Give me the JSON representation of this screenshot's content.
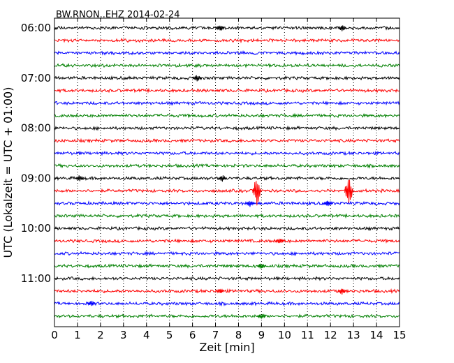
{
  "chart_data": {
    "type": "line",
    "title": "BW.RNON..EHZ 2014-02-24",
    "xlabel": "Zeit  [min]",
    "ylabel": "UTC (Lokalzeit = UTC + 01:00)",
    "xlim": [
      0,
      15
    ],
    "x_ticks": [
      "0",
      "1",
      "2",
      "3",
      "4",
      "5",
      "6",
      "7",
      "8",
      "9",
      "10",
      "11",
      "12",
      "13",
      "14",
      "15"
    ],
    "y_ticks": [
      "06:00",
      "07:00",
      "08:00",
      "09:00",
      "10:00",
      "11:00"
    ],
    "grid": "vertical dotted at each minute",
    "trace_interval_minutes": 15,
    "trace_colors": [
      "#000000",
      "#ff0000",
      "#0000ff",
      "#008000"
    ],
    "traces": [
      {
        "start": "06:00",
        "color": "#000000"
      },
      {
        "start": "06:15",
        "color": "#ff0000"
      },
      {
        "start": "06:30",
        "color": "#0000ff"
      },
      {
        "start": "06:45",
        "color": "#008000"
      },
      {
        "start": "07:00",
        "color": "#000000"
      },
      {
        "start": "07:15",
        "color": "#ff0000"
      },
      {
        "start": "07:30",
        "color": "#0000ff"
      },
      {
        "start": "07:45",
        "color": "#008000"
      },
      {
        "start": "08:00",
        "color": "#000000"
      },
      {
        "start": "08:15",
        "color": "#ff0000"
      },
      {
        "start": "08:30",
        "color": "#0000ff"
      },
      {
        "start": "08:45",
        "color": "#008000"
      },
      {
        "start": "09:00",
        "color": "#000000"
      },
      {
        "start": "09:15",
        "color": "#ff0000"
      },
      {
        "start": "09:30",
        "color": "#0000ff"
      },
      {
        "start": "09:45",
        "color": "#008000"
      },
      {
        "start": "10:00",
        "color": "#000000"
      },
      {
        "start": "10:15",
        "color": "#ff0000"
      },
      {
        "start": "10:30",
        "color": "#0000ff"
      },
      {
        "start": "10:45",
        "color": "#008000"
      },
      {
        "start": "11:00",
        "color": "#000000"
      },
      {
        "start": "11:15",
        "color": "#ff0000"
      },
      {
        "start": "11:30",
        "color": "#0000ff"
      },
      {
        "start": "11:45",
        "color": "#008000"
      }
    ],
    "events": [
      {
        "trace": 0,
        "minute": 7.2
      },
      {
        "trace": 0,
        "minute": 12.5
      },
      {
        "trace": 4,
        "minute": 6.2
      },
      {
        "trace": 12,
        "minute": 7.3
      },
      {
        "trace": 12,
        "minute": 1.1
      },
      {
        "trace": 13,
        "minute": 8.8
      },
      {
        "trace": 13,
        "minute": 12.8
      },
      {
        "trace": 14,
        "minute": 8.5
      },
      {
        "trace": 14,
        "minute": 11.9
      },
      {
        "trace": 17,
        "minute": 9.8
      },
      {
        "trace": 19,
        "minute": 9.0
      },
      {
        "trace": 21,
        "minute": 7.2
      },
      {
        "trace": 21,
        "minute": 12.5
      },
      {
        "trace": 22,
        "minute": 1.6
      },
      {
        "trace": 23,
        "minute": 9.0
      }
    ]
  }
}
